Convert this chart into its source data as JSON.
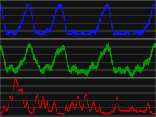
{
  "background_color": "#111111",
  "grid_color": "#aaaaaa",
  "co2_color": "#1111ff",
  "temp_color": "#009900",
  "dust_color": "#cc0000",
  "line_width": 0.5
}
